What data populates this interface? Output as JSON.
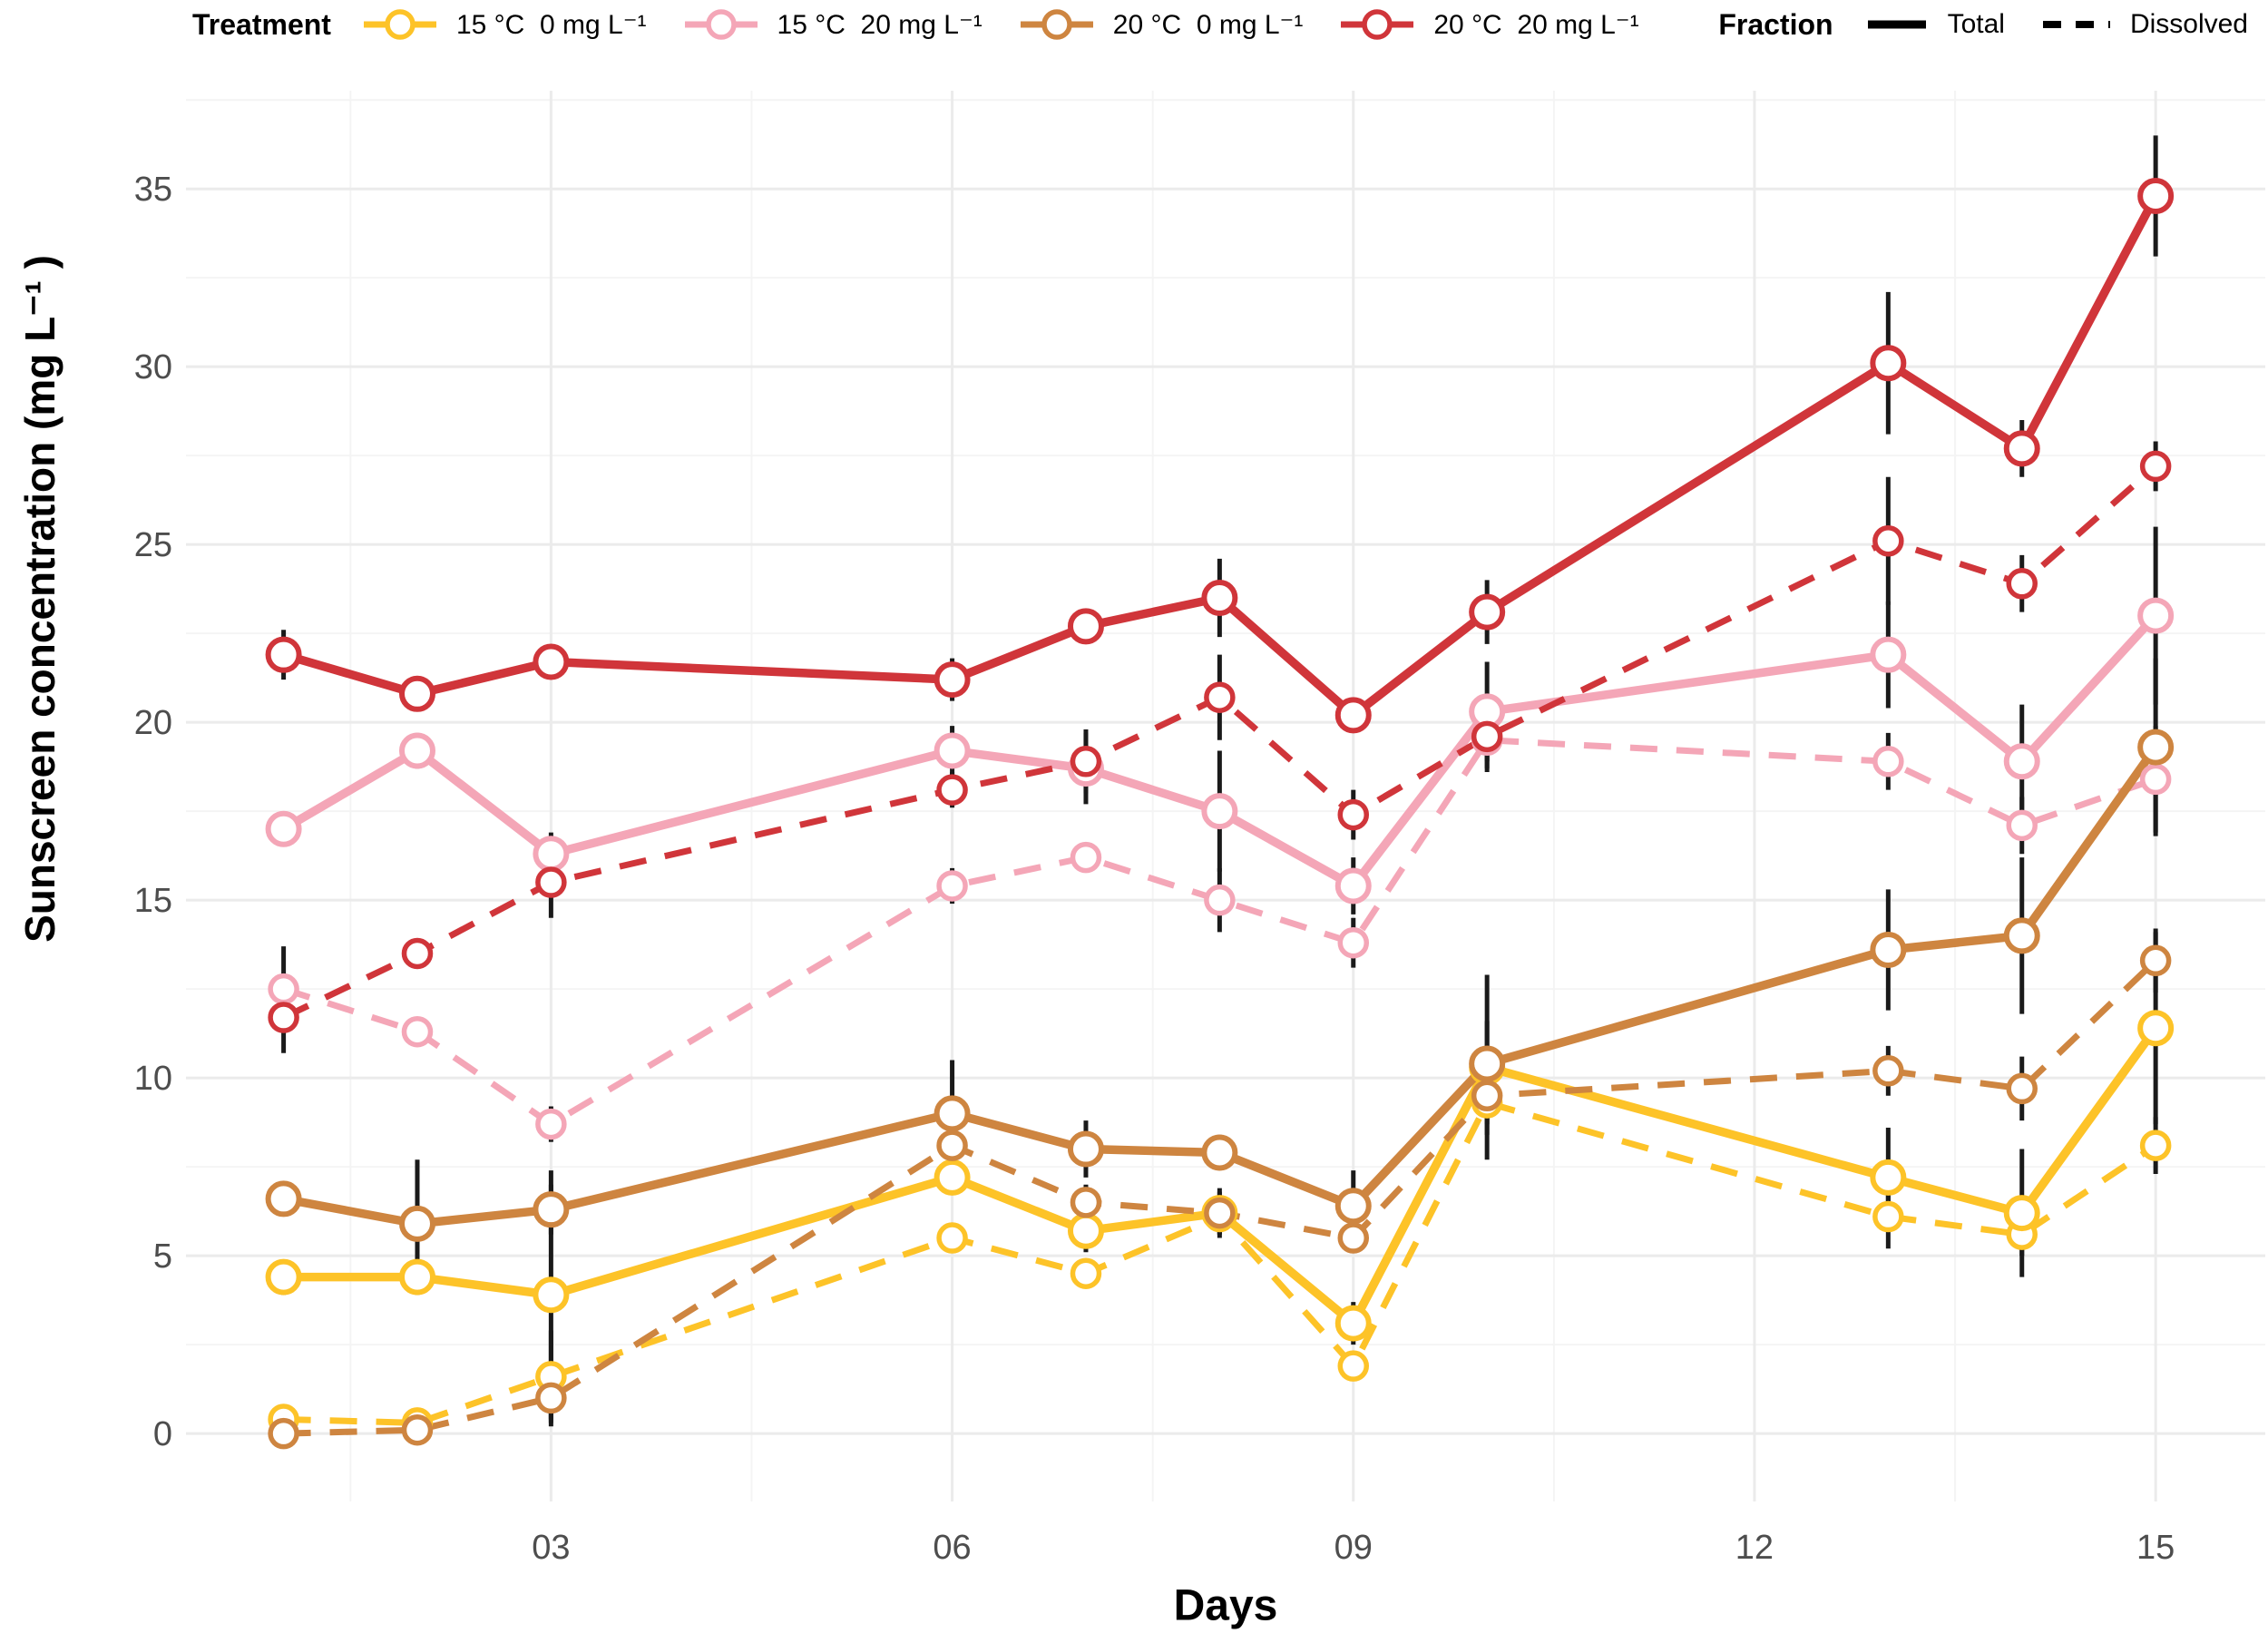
{
  "chart_data": {
    "type": "line",
    "title": "",
    "xlabel": "Days",
    "ylabel": "Sunscreen concentration (mg L⁻¹ )",
    "xlim": [
      0.27,
      15.82
    ],
    "ylim": [
      -1.91,
      37.76
    ],
    "x_ticks": {
      "values": [
        3,
        6,
        9,
        12,
        15
      ],
      "labels": [
        "03",
        "06",
        "09",
        "12",
        "15"
      ]
    },
    "y_ticks": {
      "values": [
        0,
        5,
        10,
        15,
        20,
        25,
        30,
        35
      ],
      "labels": [
        "0",
        "5",
        "10",
        "15",
        "20",
        "25",
        "30",
        "35"
      ]
    },
    "grid": {
      "on": true,
      "major_color": "#EBEBEB",
      "minor_color": "#F4F4F4",
      "x_major": [
        3,
        6,
        9,
        12,
        15
      ],
      "x_minor": [
        1.5,
        4.5,
        7.5,
        10.5,
        13.5
      ],
      "y_major": [
        0,
        5,
        10,
        15,
        20,
        25,
        30,
        35
      ],
      "y_minor": [
        2.5,
        7.5,
        12.5,
        17.5,
        22.5,
        27.5,
        32.5,
        37.5
      ]
    },
    "error_bar_color": "#1A1A1A",
    "days": [
      1,
      2,
      3,
      6,
      7,
      8,
      9,
      10,
      13,
      14,
      15
    ],
    "series": [
      {
        "id": "15C-0-dissolved",
        "treatment": "15 °C  0 mg L⁻¹",
        "fraction": "Dissolved",
        "color": "#FDC328",
        "dash": true,
        "values": [
          0.4,
          0.3,
          1.6,
          5.5,
          4.5,
          6.1,
          1.9,
          9.3,
          6.1,
          5.6,
          8.1
        ],
        "errors": [
          0.3,
          0.3,
          1.3,
          0.4,
          0.3,
          0.5,
          0.4,
          0.9,
          0.9,
          0.6,
          0.8
        ]
      },
      {
        "id": "15C-0-total",
        "treatment": "15 °C  0 mg L⁻¹",
        "fraction": "Total",
        "color": "#FDC328",
        "dash": false,
        "values": [
          4.4,
          4.4,
          3.9,
          7.2,
          5.7,
          6.2,
          3.1,
          10.3,
          7.2,
          6.2,
          11.4
        ],
        "errors": [
          0.5,
          0.5,
          3.5,
          0.5,
          0.6,
          0.7,
          0.6,
          2.6,
          1.4,
          1.8,
          2.7
        ]
      },
      {
        "id": "15C-20-dissolved",
        "treatment": "15 °C  20 mg L⁻¹",
        "fraction": "Dissolved",
        "color": "#F4A6B7",
        "dash": true,
        "values": [
          12.5,
          11.3,
          8.7,
          15.4,
          16.2,
          15.0,
          13.8,
          19.5,
          18.9,
          17.1,
          18.4
        ],
        "errors": [
          1.2,
          0.4,
          0.5,
          0.5,
          0.4,
          0.9,
          0.7,
          0.8,
          0.8,
          0.8,
          1.5
        ]
      },
      {
        "id": "15C-20-total",
        "treatment": "15 °C  20 mg L⁻¹",
        "fraction": "Total",
        "color": "#F4A6B7",
        "dash": false,
        "values": [
          17.0,
          19.2,
          16.3,
          19.2,
          18.7,
          17.5,
          15.4,
          20.3,
          21.9,
          18.9,
          23.0
        ],
        "errors": [
          0.4,
          0.5,
          0.6,
          0.7,
          1.0,
          1.7,
          0.8,
          1.4,
          1.5,
          1.6,
          2.5
        ]
      },
      {
        "id": "20C-0-dissolved",
        "treatment": "20 °C  0 mg L⁻¹",
        "fraction": "Dissolved",
        "color": "#CE8540",
        "dash": true,
        "values": [
          0.0,
          0.1,
          1.0,
          8.1,
          6.5,
          6.2,
          5.5,
          9.5,
          10.2,
          9.7,
          13.3
        ],
        "errors": [
          0.2,
          0.3,
          0.8,
          0.5,
          0.5,
          0.6,
          0.4,
          0.8,
          0.7,
          0.9,
          0.9
        ]
      },
      {
        "id": "20C-0-total",
        "treatment": "20 °C  0 mg L⁻¹",
        "fraction": "Total",
        "color": "#CE8540",
        "dash": false,
        "values": [
          6.6,
          5.9,
          6.3,
          9.0,
          8.0,
          7.9,
          6.4,
          10.4,
          13.6,
          14.0,
          19.3
        ],
        "errors": [
          0.4,
          1.8,
          0.7,
          1.5,
          0.8,
          0.5,
          1.0,
          1.2,
          1.7,
          2.2,
          2.5
        ]
      },
      {
        "id": "20C-20-dissolved",
        "treatment": "20 °C  20 mg L⁻¹",
        "fraction": "Dissolved",
        "color": "#D0353A",
        "dash": true,
        "values": [
          11.7,
          13.5,
          15.5,
          18.1,
          18.9,
          20.7,
          17.4,
          19.6,
          25.1,
          23.9,
          27.2
        ],
        "errors": [
          1.0,
          0.4,
          1.0,
          0.5,
          0.9,
          1.2,
          0.7,
          1.0,
          1.8,
          0.8,
          0.7
        ]
      },
      {
        "id": "20C-20-total",
        "treatment": "20 °C  20 mg L⁻¹",
        "fraction": "Total",
        "color": "#D0353A",
        "dash": false,
        "values": [
          21.9,
          20.8,
          21.7,
          21.2,
          22.7,
          23.5,
          20.2,
          23.1,
          30.1,
          27.7,
          34.8
        ],
        "errors": [
          0.7,
          0.4,
          0.3,
          0.6,
          0.5,
          1.1,
          0.5,
          0.9,
          2.0,
          0.8,
          1.7
        ]
      }
    ],
    "legend": {
      "position": "top",
      "treatment_title": "Treatment",
      "fraction_title": "Fraction",
      "treatments": [
        {
          "label": "15 °C  0 mg L⁻¹",
          "color": "#FDC328"
        },
        {
          "label": "15 °C  20 mg L⁻¹",
          "color": "#F4A6B7"
        },
        {
          "label": "20 °C  0 mg L⁻¹",
          "color": "#CE8540"
        },
        {
          "label": "20 °C  20 mg L⁻¹",
          "color": "#D0353A"
        }
      ],
      "fractions": [
        {
          "label": "Total",
          "dash": false
        },
        {
          "label": "Dissolved",
          "dash": true
        }
      ]
    }
  }
}
